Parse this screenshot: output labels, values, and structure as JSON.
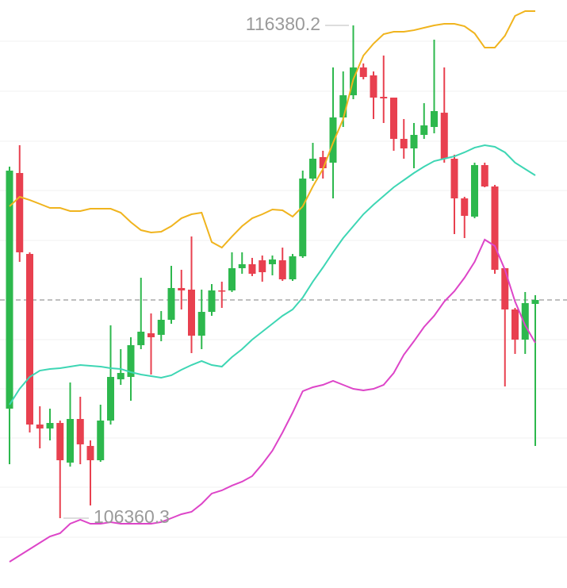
{
  "chart_data": {
    "type": "candlestick",
    "ylim": [
      104940,
      116897
    ],
    "up_color": "#2db84d",
    "down_color": "#e8404f",
    "candles": {
      "open": [
        108587,
        113379,
        111733,
        108264,
        108184,
        108296,
        107490,
        108377,
        107829,
        107538,
        108345,
        109184,
        109232,
        109878,
        110120,
        110088,
        110394,
        111040,
        111007,
        110071,
        110555,
        110991,
        110991,
        111443,
        111524,
        111604,
        111524,
        111604,
        111217,
        111685,
        113266,
        113702,
        113589,
        114509,
        114960,
        115525,
        115364,
        114928,
        114912,
        114073,
        113879,
        114154,
        114315,
        114605,
        113670,
        112863,
        112492,
        113540,
        113105,
        111443,
        110604,
        109991,
        110717
      ],
      "high": [
        113508,
        113944,
        111766,
        108635,
        108587,
        108345,
        109119,
        108829,
        107942,
        108668,
        110281,
        109797,
        110039,
        111249,
        110523,
        110572,
        111491,
        111411,
        112088,
        111007,
        111120,
        111169,
        111766,
        111766,
        111653,
        111701,
        111701,
        111862,
        111733,
        113427,
        113992,
        113831,
        115525,
        115444,
        116380.2,
        115606,
        115444,
        115767,
        114912,
        114476,
        114396,
        114799,
        116090,
        115525,
        113750,
        112895,
        113589,
        113589,
        113137,
        111443,
        110636,
        110959,
        110894
      ],
      "low": [
        107458,
        111572,
        108103,
        107780,
        107942,
        106360.3,
        107409,
        107458,
        106619,
        107506,
        108264,
        109071,
        108748,
        109797,
        109281,
        109958,
        110313,
        110604,
        109716,
        109797,
        110475,
        110636,
        110959,
        111330,
        111282,
        111169,
        111298,
        111185,
        111185,
        111653,
        113218,
        113266,
        112863,
        114315,
        114880,
        115283,
        114476,
        114396,
        113831,
        113670,
        113476,
        114073,
        114186,
        113589,
        112137,
        112056,
        112459,
        113089,
        111330,
        109039,
        109700,
        109700,
        107829
      ],
      "close": [
        113427,
        111766,
        108264,
        108184,
        108296,
        107538,
        108377,
        107861,
        107538,
        108345,
        109232,
        109313,
        109878,
        110152,
        110039,
        110394,
        111040,
        110991,
        110071,
        110555,
        110991,
        110975,
        111443,
        111524,
        111330,
        111362,
        111620,
        111217,
        111685,
        113266,
        113670,
        113476,
        114509,
        114960,
        115525,
        115331,
        114912,
        114896,
        114073,
        113879,
        114154,
        114347,
        114638,
        113670,
        112863,
        112508,
        113540,
        113105,
        111411,
        110604,
        109991,
        110733,
        110797
      ]
    },
    "bands": [
      {
        "color": "#f0b41e",
        "values": [
          112701,
          112895,
          112830,
          112750,
          112669,
          112669,
          112605,
          112605,
          112653,
          112653,
          112653,
          112572,
          112379,
          112217,
          112169,
          112185,
          112298,
          112459,
          112540,
          112572,
          111975,
          111862,
          112088,
          112298,
          112459,
          112540,
          112637,
          112621,
          112492,
          112701,
          113105,
          113460,
          113992,
          114476,
          115283,
          115767,
          116009,
          116203,
          116251,
          116251,
          116283,
          116332,
          116380,
          116412,
          116412,
          116364,
          116219,
          115928,
          115928,
          116170,
          116574,
          116671,
          116671
        ]
      },
      {
        "color": "#3ed6b4",
        "values": [
          108668,
          108990,
          109232,
          109361,
          109394,
          109410,
          109442,
          109474,
          109458,
          109442,
          109410,
          109394,
          109329,
          109281,
          109248,
          109216,
          109265,
          109378,
          109474,
          109555,
          109474,
          109442,
          109636,
          109797,
          109991,
          110152,
          110313,
          110475,
          110604,
          110846,
          111169,
          111459,
          111766,
          112056,
          112298,
          112540,
          112734,
          112911,
          113089,
          113234,
          113379,
          113508,
          113621,
          113670,
          113718,
          113799,
          113895,
          113944,
          113912,
          113799,
          113589,
          113460,
          113331
        ]
      },
      {
        "color": "#dd45c8",
        "values": [
          105473,
          105602,
          105731,
          105860,
          105989,
          106054,
          106247,
          106328,
          106247,
          106247,
          106280,
          106247,
          106247,
          106247,
          106247,
          106280,
          106360,
          106441,
          106489,
          106651,
          106861,
          106925,
          107022,
          107103,
          107216,
          107458,
          107732,
          108103,
          108506,
          108942,
          109023,
          109071,
          109152,
          109071,
          108990,
          108958,
          108990,
          109071,
          109313,
          109684,
          109958,
          110249,
          110475,
          110765,
          110975,
          111249,
          111572,
          112024,
          111895,
          111411,
          110765,
          110281,
          109926
        ]
      }
    ],
    "current_price": 110797,
    "max_label": {
      "value": 116380.2,
      "label": "116380.2"
    },
    "min_label": {
      "value": 106360.3,
      "label": "106360.3"
    }
  }
}
